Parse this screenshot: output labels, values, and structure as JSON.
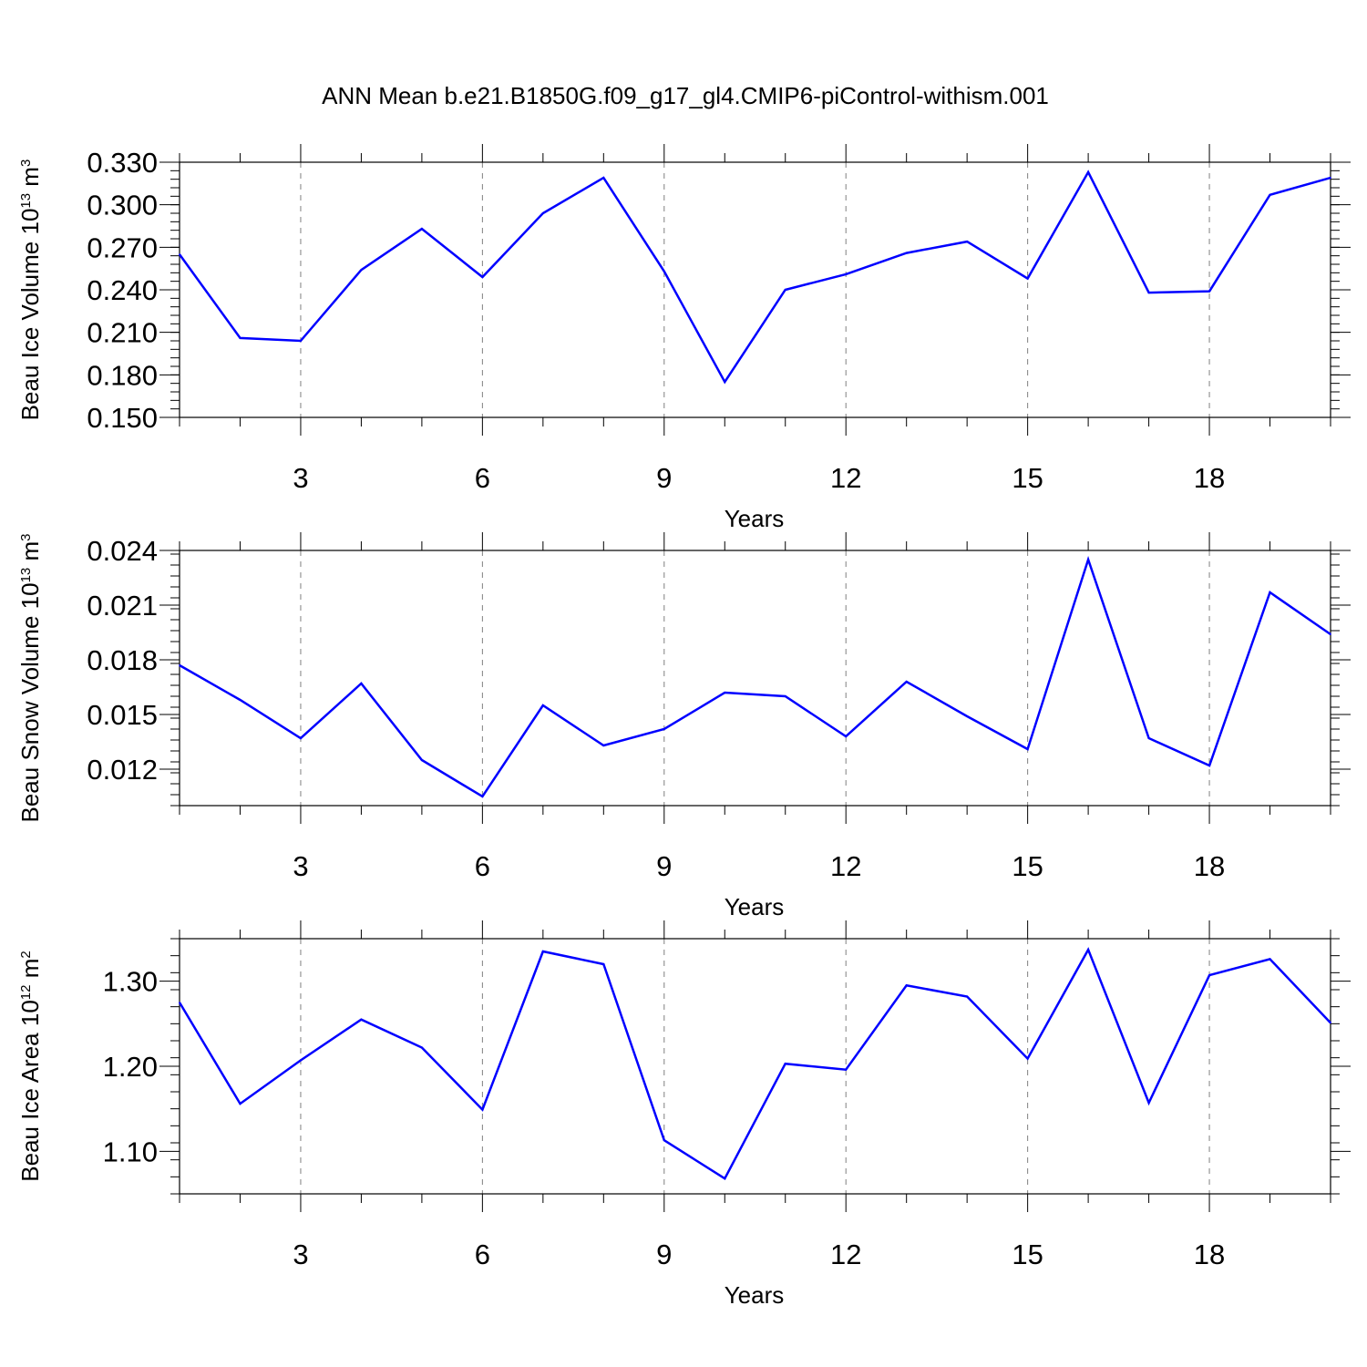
{
  "title": "ANN Mean b.e21.B1850G.f09_g17_gl4.CMIP6-piControl-withism.001",
  "colors": {
    "line": "#0000ff",
    "frame": "#000000",
    "grid": "#808080"
  },
  "chart_data": [
    {
      "type": "line",
      "xlabel": "Years",
      "ylabel": {
        "prefix": "Beau Ice Volume 10",
        "exp": "13",
        "unit": " m",
        "unit_exp": "3"
      },
      "xlim": [
        1,
        20
      ],
      "ylim": [
        0.15,
        0.33
      ],
      "xticks": [
        3,
        6,
        9,
        12,
        15,
        18
      ],
      "xtick_labels": [
        "3",
        "6",
        "9",
        "12",
        "15",
        "18"
      ],
      "yticks": [
        0.15,
        0.18,
        0.21,
        0.24,
        0.27,
        0.3,
        0.33
      ],
      "ytick_labels": [
        "0.150",
        "0.180",
        "0.210",
        "0.240",
        "0.270",
        "0.300",
        "0.330"
      ],
      "y_minor_step": 0.006,
      "x": [
        1,
        2,
        3,
        4,
        5,
        6,
        7,
        8,
        9,
        10,
        11,
        12,
        13,
        14,
        15,
        16,
        17,
        18,
        19,
        20
      ],
      "values": [
        0.265,
        0.206,
        0.204,
        0.254,
        0.283,
        0.249,
        0.294,
        0.319,
        0.253,
        0.175,
        0.24,
        0.251,
        0.266,
        0.274,
        0.248,
        0.323,
        0.238,
        0.239,
        0.307,
        0.319
      ],
      "xgrid": "dashed at major ticks"
    },
    {
      "type": "line",
      "xlabel": "Years",
      "ylabel": {
        "prefix": "Beau Snow Volume 10",
        "exp": "13",
        "unit": " m",
        "unit_exp": "3"
      },
      "xlim": [
        1,
        20
      ],
      "ylim": [
        0.01,
        0.024
      ],
      "xticks": [
        3,
        6,
        9,
        12,
        15,
        18
      ],
      "xtick_labels": [
        "3",
        "6",
        "9",
        "12",
        "15",
        "18"
      ],
      "yticks": [
        0.012,
        0.015,
        0.018,
        0.021,
        0.024
      ],
      "ytick_labels": [
        "0.012",
        "0.015",
        "0.018",
        "0.021",
        "0.024"
      ],
      "y_minor_step": 0.0006,
      "x": [
        1,
        2,
        3,
        4,
        5,
        6,
        7,
        8,
        9,
        10,
        11,
        12,
        13,
        14,
        15,
        16,
        17,
        18,
        19,
        20
      ],
      "values": [
        0.0177,
        0.0158,
        0.0137,
        0.0167,
        0.0125,
        0.0105,
        0.0155,
        0.0133,
        0.0142,
        0.0162,
        0.016,
        0.0138,
        0.0168,
        0.0149,
        0.0131,
        0.0235,
        0.0137,
        0.0122,
        0.0217,
        0.0194
      ],
      "xgrid": "dashed at major ticks"
    },
    {
      "type": "line",
      "xlabel": "Years",
      "ylabel": {
        "prefix": "Beau Ice Area 10",
        "exp": "12",
        "unit": " m",
        "unit_exp": "2"
      },
      "xlim": [
        1,
        20
      ],
      "ylim": [
        1.05,
        1.35
      ],
      "xticks": [
        3,
        6,
        9,
        12,
        15,
        18
      ],
      "xtick_labels": [
        "3",
        "6",
        "9",
        "12",
        "15",
        "18"
      ],
      "yticks": [
        1.1,
        1.2,
        1.3
      ],
      "ytick_labels": [
        "1.10",
        "1.20",
        "1.30"
      ],
      "y_minor_step": 0.02,
      "x": [
        1,
        2,
        3,
        4,
        5,
        6,
        7,
        8,
        9,
        10,
        11,
        12,
        13,
        14,
        15,
        16,
        17,
        18,
        19,
        20
      ],
      "values": [
        1.275,
        1.156,
        1.207,
        1.255,
        1.222,
        1.149,
        1.335,
        1.32,
        1.113,
        1.068,
        1.203,
        1.196,
        1.295,
        1.282,
        1.209,
        1.337,
        1.157,
        1.307,
        1.326,
        1.251
      ],
      "xgrid": "dashed at major ticks"
    }
  ]
}
